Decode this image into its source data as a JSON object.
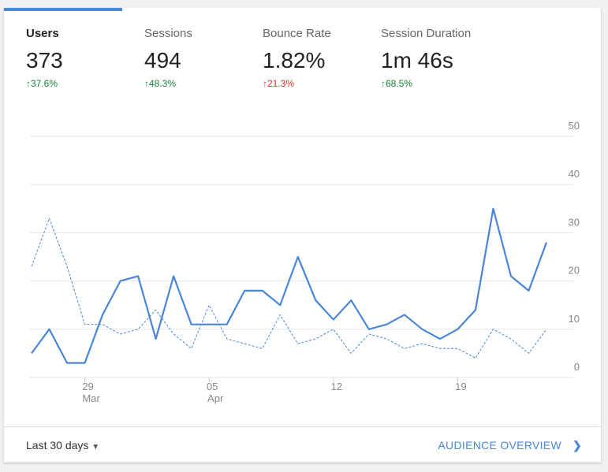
{
  "metrics": [
    {
      "label": "Users",
      "value": "373",
      "change": "37.6%",
      "change_color": "#188038",
      "selected": true
    },
    {
      "label": "Sessions",
      "value": "494",
      "change": "48.3%",
      "change_color": "#188038",
      "selected": false
    },
    {
      "label": "Bounce Rate",
      "value": "1.82%",
      "change": "21.3%",
      "change_color": "#d93025",
      "selected": false
    },
    {
      "label": "Session Duration",
      "value": "1m 46s",
      "change": "68.5%",
      "change_color": "#188038",
      "selected": false
    }
  ],
  "chart_data": {
    "type": "line",
    "categories": [
      null,
      null,
      null,
      "29",
      null,
      null,
      null,
      null,
      null,
      null,
      "05",
      null,
      null,
      null,
      null,
      null,
      null,
      "12",
      null,
      null,
      null,
      null,
      null,
      null,
      "19",
      null,
      null,
      null,
      null,
      null
    ],
    "category_months": [
      null,
      null,
      null,
      "Mar",
      null,
      null,
      null,
      null,
      null,
      null,
      "Apr",
      null,
      null,
      null,
      null,
      null,
      null,
      null,
      null,
      null,
      null,
      null,
      null,
      null,
      null,
      null,
      null,
      null,
      null,
      null
    ],
    "series": [
      {
        "color": "#4a86d8",
        "dashed": false,
        "values": [
          5,
          10,
          3,
          3,
          13,
          20,
          21,
          8,
          21,
          11,
          11,
          11,
          18,
          18,
          15,
          25,
          16,
          12,
          16,
          10,
          11,
          13,
          10,
          8,
          10,
          14,
          35,
          21,
          18,
          28
        ]
      },
      {
        "color": "#4a86d8",
        "dashed": true,
        "values": [
          23,
          33,
          23,
          11,
          11,
          9,
          10,
          14,
          9,
          6,
          15,
          8,
          7,
          6,
          13,
          7,
          8,
          10,
          5,
          9,
          8,
          6,
          7,
          6,
          6,
          4,
          10,
          8,
          5,
          10
        ]
      }
    ],
    "ylim": [
      0,
      50
    ],
    "yticks": [
      0,
      10,
      20,
      30,
      40,
      50
    ],
    "grid": true
  },
  "footer": {
    "range": "Last 30 days",
    "link": "AUDIENCE OVERVIEW"
  }
}
